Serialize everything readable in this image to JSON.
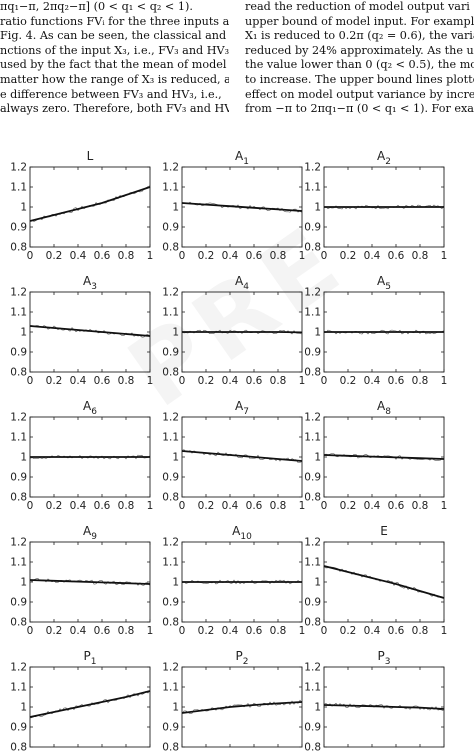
{
  "left_column": {
    "lines": [
      "πq₁−π, 2πq₂−π] (0 < q₁ < q₂ < 1).",
      " ratio functions FVᵢ for the three inputs are",
      "Fig. 4. As can be seen, the classical and",
      "nctions of the input X₃, i.e., FV₃ and HV₃,",
      "used by the fact that the mean of model",
      " matter how the range of X₃ is reduced, as",
      "e difference between FV₃ and HV₃, i.e.,",
      "always zero. Therefore, both FV₃ and HV₃"
    ]
  },
  "right_column": {
    "lines": [
      "read the reduction of model output vari",
      "upper bound of model input. For example",
      "X₁ is reduced to 0.2π (q₂ = 0.6), the varia",
      "reduced by 24% approximately. As the upp",
      "the value lower than 0 (q₂ < 0.5), the mod",
      "to increase. The upper bound lines plotte",
      "effect on model output variance by incre",
      "from −π to 2πq₁−π (0 < q₁ < 1). For exam"
    ]
  },
  "watermark_text": "PRE",
  "chart_data": {
    "type": "line",
    "layout": "5x3 grid of subplots",
    "shared_axes": {
      "xlim": [
        0,
        1
      ],
      "ylim": [
        0.8,
        1.2
      ],
      "x_ticks": [
        "0",
        "0.2",
        "0.4",
        "0.6",
        "0.8",
        "1"
      ],
      "y_ticks": [
        "0.8",
        "0.9",
        "1",
        "1.1",
        "1.2"
      ],
      "grid": false
    },
    "panels": [
      {
        "title": "L",
        "sub": "",
        "x": [
          0,
          0.2,
          0.4,
          0.6,
          0.8,
          1
        ],
        "values": [
          0.93,
          0.96,
          0.99,
          1.02,
          1.06,
          1.1
        ]
      },
      {
        "title": "A",
        "sub": "1",
        "x": [
          0,
          0.2,
          0.4,
          0.6,
          0.8,
          1
        ],
        "values": [
          1.02,
          1.012,
          1.004,
          0.996,
          0.988,
          0.98
        ]
      },
      {
        "title": "A",
        "sub": "2",
        "x": [
          0,
          0.2,
          0.4,
          0.6,
          0.8,
          1
        ],
        "values": [
          1.0,
          1.0,
          1.0,
          1.0,
          1.0,
          1.0
        ]
      },
      {
        "title": "A",
        "sub": "3",
        "x": [
          0,
          0.2,
          0.4,
          0.6,
          0.8,
          1
        ],
        "values": [
          1.03,
          1.02,
          1.01,
          1.0,
          0.99,
          0.98
        ]
      },
      {
        "title": "A",
        "sub": "4",
        "x": [
          0,
          0.2,
          0.4,
          0.6,
          0.8,
          1
        ],
        "values": [
          1.0,
          1.0,
          1.0,
          1.0,
          1.0,
          0.998
        ]
      },
      {
        "title": "A",
        "sub": "5",
        "x": [
          0,
          0.2,
          0.4,
          0.6,
          0.8,
          1
        ],
        "values": [
          1.0,
          1.0,
          1.0,
          1.0,
          1.0,
          1.0
        ]
      },
      {
        "title": "A",
        "sub": "6",
        "x": [
          0,
          0.2,
          0.4,
          0.6,
          0.8,
          1
        ],
        "values": [
          1.0,
          1.0,
          1.0,
          1.0,
          1.0,
          1.0
        ]
      },
      {
        "title": "A",
        "sub": "7",
        "x": [
          0,
          0.2,
          0.4,
          0.6,
          0.8,
          1
        ],
        "values": [
          1.03,
          1.02,
          1.01,
          1.0,
          0.99,
          0.98
        ]
      },
      {
        "title": "A",
        "sub": "8",
        "x": [
          0,
          0.2,
          0.4,
          0.6,
          0.8,
          1
        ],
        "values": [
          1.01,
          1.006,
          1.002,
          0.998,
          0.994,
          0.99
        ]
      },
      {
        "title": "A",
        "sub": "9",
        "x": [
          0,
          0.2,
          0.4,
          0.6,
          0.8,
          1
        ],
        "values": [
          1.01,
          1.006,
          1.002,
          0.998,
          0.994,
          0.99
        ]
      },
      {
        "title": "A",
        "sub": "10",
        "x": [
          0,
          0.2,
          0.4,
          0.6,
          0.8,
          1
        ],
        "values": [
          1.0,
          1.0,
          1.0,
          1.0,
          1.0,
          1.0
        ]
      },
      {
        "title": "E",
        "sub": "",
        "x": [
          0,
          0.2,
          0.4,
          0.6,
          0.8,
          1
        ],
        "values": [
          1.08,
          1.05,
          1.02,
          0.99,
          0.955,
          0.92
        ]
      },
      {
        "title": "P",
        "sub": "1",
        "x": [
          0,
          0.2,
          0.4,
          0.6,
          0.8,
          1
        ],
        "values": [
          0.95,
          0.975,
          1.0,
          1.025,
          1.05,
          1.08
        ]
      },
      {
        "title": "P",
        "sub": "2",
        "x": [
          0,
          0.2,
          0.4,
          0.6,
          0.8,
          1
        ],
        "values": [
          0.97,
          0.985,
          1.0,
          1.01,
          1.018,
          1.025
        ]
      },
      {
        "title": "P",
        "sub": "3",
        "x": [
          0,
          0.2,
          0.4,
          0.6,
          0.8,
          1
        ],
        "values": [
          1.01,
          1.007,
          1.004,
          1.0,
          0.997,
          0.99
        ]
      }
    ]
  }
}
